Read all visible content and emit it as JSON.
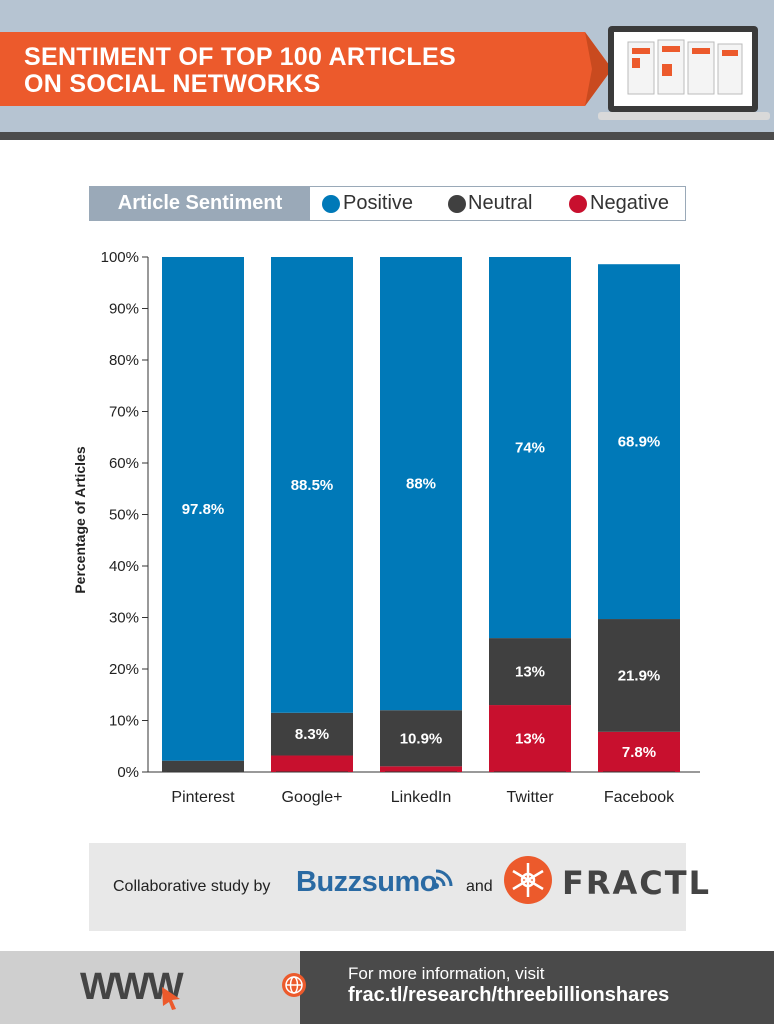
{
  "header": {
    "title_line1": "SENTIMENT OF TOP 100 ARTICLES",
    "title_line2": "ON SOCIAL NETWORKS"
  },
  "legend": {
    "title": "Article Sentiment",
    "items": [
      {
        "label": "Positive",
        "color": "#0079b8"
      },
      {
        "label": "Neutral",
        "color": "#404040"
      },
      {
        "label": "Negative",
        "color": "#c8102e"
      }
    ]
  },
  "chart_data": {
    "type": "bar",
    "stacked": true,
    "categories": [
      "Pinterest",
      "Google+",
      "LinkedIn",
      "Twitter",
      "Facebook"
    ],
    "series": [
      {
        "name": "Negative",
        "color": "#c8102e",
        "values": [
          0,
          3.2,
          1.1,
          13,
          7.8
        ],
        "labels": [
          "",
          "",
          "",
          "13%",
          "7.8%"
        ]
      },
      {
        "name": "Neutral",
        "color": "#404040",
        "values": [
          2.2,
          8.3,
          10.9,
          13,
          21.9
        ],
        "labels": [
          "",
          "8.3%",
          "10.9%",
          "13%",
          "21.9%"
        ]
      },
      {
        "name": "Positive",
        "color": "#0079b8",
        "values": [
          97.8,
          88.5,
          88,
          74,
          68.9
        ],
        "labels": [
          "97.8%",
          "88.5%",
          "88%",
          "74%",
          "68.9%"
        ]
      }
    ],
    "ylabel": "Percentage of Articles",
    "yticks": [
      "0%",
      "10%",
      "20%",
      "30%",
      "40%",
      "50%",
      "60%",
      "70%",
      "80%",
      "90%",
      "100%"
    ],
    "ylim": [
      0,
      100
    ]
  },
  "credits": {
    "collab": "Collaborative study by",
    "partner1": "Buzzsumo",
    "and": "and",
    "partner2": "FRACTL"
  },
  "footer": {
    "www": "WWW",
    "line1": "For more information, visit",
    "line2": "frac.tl/research/threebillionshares"
  }
}
